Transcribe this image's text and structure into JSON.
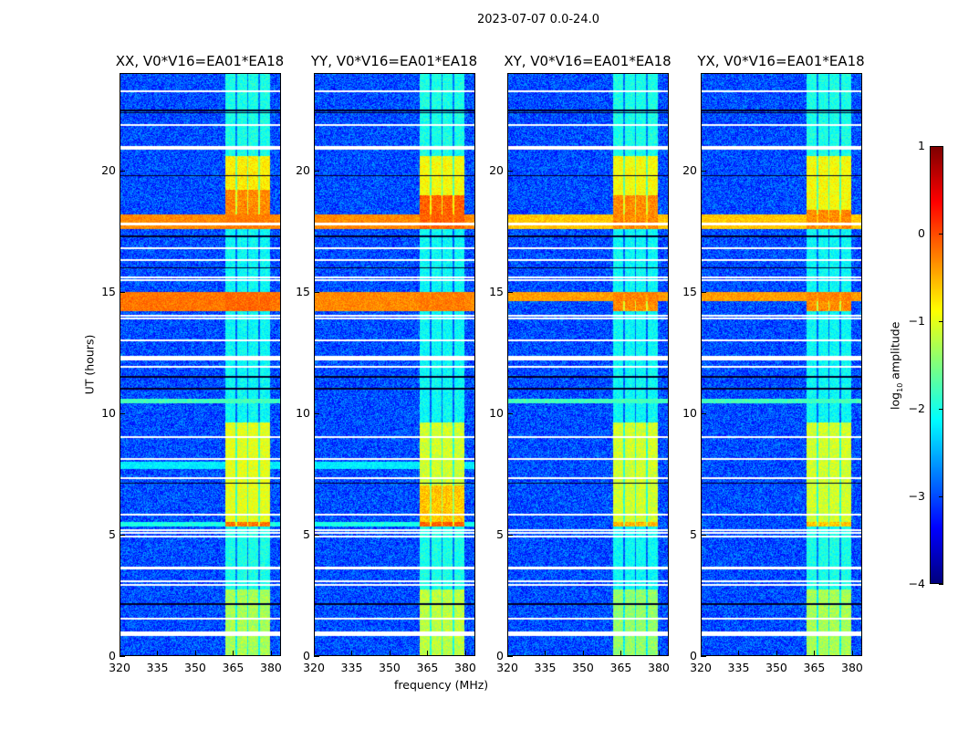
{
  "chart_data": {
    "type": "heatmap",
    "title": "2023-07-07 0.0-24.0",
    "xlabel": "frequency (MHz)",
    "ylabel": "UT (hours)",
    "xlim": [
      320,
      384
    ],
    "ylim": [
      0,
      24
    ],
    "xticks": [
      "320",
      "335",
      "350",
      "365",
      "380"
    ],
    "xtick_values": [
      320,
      335,
      350,
      365,
      380
    ],
    "yticks": [
      "0",
      "5",
      "10",
      "15",
      "20"
    ],
    "ytick_values": [
      0,
      5,
      10,
      15,
      20
    ],
    "colorbar": {
      "label_main": "log",
      "label_sub": "10",
      "label_tail": " amplitude",
      "range": [
        -4,
        1
      ],
      "ticks": [
        "−4",
        "−3",
        "−2",
        "−1",
        "0",
        "1"
      ],
      "tick_values": [
        -4,
        -3,
        -2,
        -1,
        0,
        1
      ],
      "colormap": "jet"
    },
    "band_mhz": [
      362,
      380
    ],
    "band_gaps_mhz": [
      366.5,
      371,
      375.5
    ],
    "background_level": -3.0,
    "panels": [
      {
        "title": "XX, V0*V16=EA01*EA18",
        "segments": [
          [
            0,
            2.7,
            -1.3
          ],
          [
            2.7,
            5.3,
            -2.0
          ],
          [
            5.3,
            5.5,
            -0.2
          ],
          [
            5.5,
            9.6,
            -1.0
          ],
          [
            9.6,
            14.2,
            -2.1
          ],
          [
            14.2,
            15.0,
            -0.2
          ],
          [
            15.0,
            17.6,
            -2.1
          ],
          [
            17.6,
            18.2,
            -0.3
          ],
          [
            18.2,
            19.2,
            -0.3
          ],
          [
            19.2,
            20.6,
            -0.8
          ],
          [
            20.6,
            24,
            -2.0
          ]
        ],
        "broadband": [
          [
            5.3,
            5.5,
            -2.0
          ],
          [
            7.7,
            8.0,
            -2.2
          ],
          [
            10.4,
            10.6,
            -1.8
          ],
          [
            14.2,
            15.0,
            -0.2
          ],
          [
            17.6,
            18.2,
            -0.3
          ]
        ]
      },
      {
        "title": "YY, V0*V16=EA01*EA18",
        "segments": [
          [
            0,
            2.7,
            -1.2
          ],
          [
            2.7,
            5.3,
            -2.0
          ],
          [
            5.3,
            5.5,
            -0.1
          ],
          [
            5.5,
            7.0,
            -0.6
          ],
          [
            7.0,
            9.6,
            -1.1
          ],
          [
            9.6,
            14.2,
            -2.1
          ],
          [
            14.2,
            15.0,
            -0.3
          ],
          [
            15.0,
            17.6,
            -2.1
          ],
          [
            17.6,
            19.0,
            -0.1
          ],
          [
            19.0,
            20.6,
            -0.9
          ],
          [
            20.6,
            24,
            -2.0
          ]
        ],
        "broadband": [
          [
            5.3,
            5.5,
            -2.0
          ],
          [
            7.7,
            8.0,
            -2.2
          ],
          [
            14.2,
            15.0,
            -0.3
          ],
          [
            17.6,
            18.2,
            -0.3
          ]
        ]
      },
      {
        "title": "XY, V0*V16=EA01*EA18",
        "segments": [
          [
            0,
            2.7,
            -1.4
          ],
          [
            2.7,
            5.3,
            -2.1
          ],
          [
            5.3,
            5.5,
            -0.5
          ],
          [
            5.5,
            9.6,
            -1.1
          ],
          [
            9.6,
            14.2,
            -2.1
          ],
          [
            14.2,
            15.0,
            -0.3
          ],
          [
            15.0,
            17.6,
            -2.1
          ],
          [
            17.6,
            19.0,
            -0.3
          ],
          [
            19.0,
            20.6,
            -0.9
          ],
          [
            20.6,
            24,
            -2.0
          ]
        ],
        "broadband": [
          [
            10.4,
            10.6,
            -1.8
          ],
          [
            14.6,
            15.0,
            -0.4
          ],
          [
            17.6,
            18.2,
            -0.6
          ]
        ]
      },
      {
        "title": "YX, V0*V16=EA01*EA18",
        "segments": [
          [
            0,
            2.7,
            -1.3
          ],
          [
            2.7,
            5.3,
            -2.0
          ],
          [
            5.3,
            5.5,
            -0.6
          ],
          [
            5.5,
            9.6,
            -1.1
          ],
          [
            9.6,
            14.2,
            -2.1
          ],
          [
            14.2,
            15.0,
            -0.3
          ],
          [
            15.0,
            17.6,
            -2.1
          ],
          [
            17.6,
            18.4,
            -0.3
          ],
          [
            18.4,
            20.6,
            -0.9
          ],
          [
            20.6,
            24,
            -2.0
          ]
        ],
        "broadband": [
          [
            10.4,
            10.6,
            -1.8
          ],
          [
            14.6,
            15.0,
            -0.4
          ],
          [
            17.6,
            18.2,
            -0.6
          ]
        ]
      }
    ],
    "flagged_hours": [
      0.85,
      0.95,
      1.5,
      2.9,
      3.05,
      3.6,
      4.9,
      5.05,
      5.15,
      5.8,
      7.3,
      8.1,
      9.0,
      11.9,
      12.2,
      12.3,
      13.0,
      13.9,
      14.0,
      15.5,
      15.6,
      16.3,
      16.8,
      17.8,
      20.9,
      21.0,
      21.9,
      23.3
    ],
    "dead_hours": [
      2.1,
      7.1,
      11.5,
      11.0,
      16.0,
      17.3,
      19.8,
      22.4,
      22.5
    ]
  }
}
